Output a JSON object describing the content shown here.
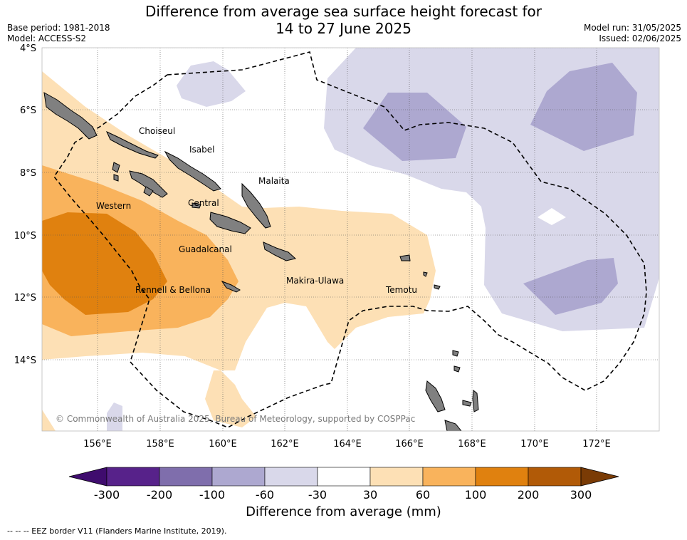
{
  "title_line1": "Difference from average sea surface height forecast for",
  "title_line2": "14 to 27 June 2025",
  "meta_left": {
    "base_period": "Base period: 1981-2018",
    "model": "Model: ACCESS-S2"
  },
  "meta_right": {
    "model_run": "Model run: 31/05/2025",
    "issued": "Issued: 02/06/2025"
  },
  "lat_labels": [
    "4°S",
    "6°S",
    "8°S",
    "10°S",
    "12°S",
    "14°S"
  ],
  "lon_labels": [
    "156°E",
    "158°E",
    "160°E",
    "162°E",
    "164°E",
    "166°E",
    "168°E",
    "170°E",
    "172°E"
  ],
  "provinces": [
    "Choiseul",
    "Isabel",
    "Malaita",
    "Western",
    "Central",
    "Guadalcanal",
    "Rennell & Bellona",
    "Makira-Ulawa",
    "Temotu"
  ],
  "copyright": "© Commonwealth of Australia 2025, Bureau of Meteorology, supported by COSPPac",
  "colorbar": {
    "ticks": [
      "-300",
      "-200",
      "-100",
      "-60",
      "-30",
      "30",
      "60",
      "100",
      "200",
      "300"
    ],
    "colors": [
      "#3f0c6e",
      "#57228a",
      "#7f6eac",
      "#ada8d0",
      "#d9d8ea",
      "#ffffff",
      "#fde0b5",
      "#f9b35c",
      "#e0810f",
      "#b15a07",
      "#7a3b05"
    ],
    "title": "Difference from average (mm)"
  },
  "footnote": "--  --  -- EEZ border V11 (Flanders Marine Institute, 2019).",
  "land_color": "#808080"
}
